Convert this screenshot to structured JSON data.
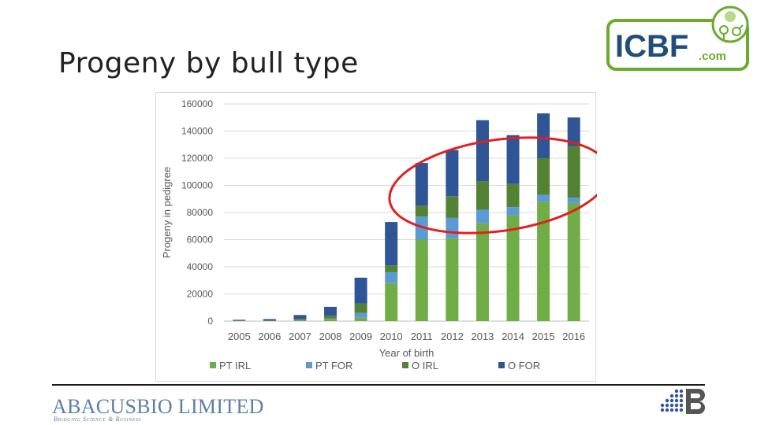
{
  "slide": {
    "title": "Progeny by bull type"
  },
  "logo": {
    "brand": "ICBF",
    "domain": ".com",
    "colors": {
      "green": "#6aab2e",
      "text": "#1f4e79"
    }
  },
  "footer": {
    "company_a": "ABACUS",
    "company_b": "BIO LIMITED",
    "tagline": "Bridging Science & Business",
    "color": "#5c7fa8"
  },
  "chart_data": {
    "type": "bar",
    "stacked": true,
    "title": "",
    "xlabel": "Year of birth",
    "ylabel": "Progeny in pedigree",
    "ylim": [
      0,
      160000
    ],
    "yticks": [
      0,
      20000,
      40000,
      60000,
      80000,
      100000,
      120000,
      140000,
      160000
    ],
    "grid": true,
    "legend_position": "bottom",
    "categories": [
      "2005",
      "2006",
      "2007",
      "2008",
      "2009",
      "2010",
      "2011",
      "2012",
      "2013",
      "2014",
      "2015",
      "2016"
    ],
    "series": [
      {
        "name": "PT IRL",
        "color": "#70ad47",
        "values": [
          0,
          0,
          500,
          1500,
          2500,
          28000,
          60000,
          61000,
          72000,
          78000,
          88000,
          87000
        ]
      },
      {
        "name": "PT FOR",
        "color": "#5b9bd5",
        "values": [
          0,
          0,
          200,
          500,
          3500,
          8000,
          17000,
          15000,
          10000,
          6000,
          5000,
          4000
        ]
      },
      {
        "name": "O IRL",
        "color": "#548235",
        "values": [
          500,
          500,
          1000,
          2000,
          7000,
          5000,
          8000,
          16000,
          21000,
          17000,
          27000,
          38000
        ]
      },
      {
        "name": "O FOR",
        "color": "#2f5597",
        "values": [
          500,
          1000,
          2800,
          6500,
          19000,
          32000,
          31500,
          34000,
          45000,
          36000,
          33000,
          21000
        ]
      }
    ],
    "annotation": {
      "type": "ellipse",
      "color": "#e02020",
      "covers_categories": [
        "2011",
        "2016"
      ]
    }
  }
}
